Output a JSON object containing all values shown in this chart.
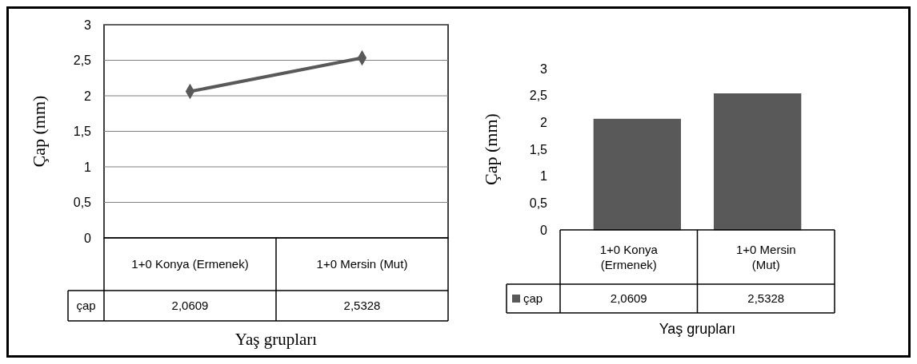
{
  "chart_data": [
    {
      "type": "line",
      "xlabel": "Yaş grupları",
      "ylabel": "Çap (mm)",
      "categories": [
        "1+0 Konya (Ermenek)",
        "1+0 Mersin (Mut)"
      ],
      "series": [
        {
          "name": "çap",
          "color": "#595959",
          "values": [
            2.0609,
            2.5328
          ],
          "value_labels": [
            "2,0609",
            "2,5328"
          ]
        }
      ],
      "ylim": [
        0,
        3
      ],
      "yticks": [
        0,
        {
          "value": 0.5,
          "label": "0,5"
        },
        1,
        {
          "value": 1.5,
          "label": "1,5"
        },
        2,
        {
          "value": 2.5,
          "label": "2,5"
        },
        3
      ],
      "grid": "y",
      "marker": "diamond",
      "legend": false
    },
    {
      "type": "bar",
      "xlabel": "Yaş grupları",
      "ylabel": "Çap (mm)",
      "categories": [
        "1+0 Konya (Ermenek)",
        "1+0 Mersin (Mut)"
      ],
      "series": [
        {
          "name": "çap",
          "color": "#595959",
          "values": [
            2.0609,
            2.5328
          ],
          "value_labels": [
            "2,0609",
            "2,5328"
          ]
        }
      ],
      "ylim": [
        0,
        3
      ],
      "yticks": [
        0,
        {
          "value": 0.5,
          "label": "0,5"
        },
        1,
        {
          "value": 1.5,
          "label": "1,5"
        },
        2,
        {
          "value": 2.5,
          "label": "2,5"
        },
        3
      ],
      "legend": "bottom"
    }
  ]
}
